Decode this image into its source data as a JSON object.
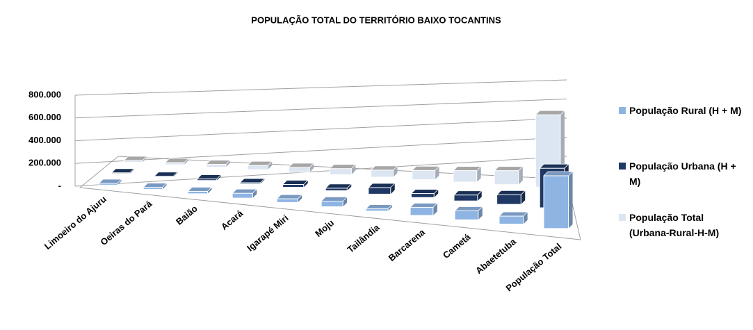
{
  "chart_data": {
    "type": "bar3d",
    "title": "POPULAÇÃO TOTAL DO TERRITÓRIO BAIXO TOCANTINS",
    "categories": [
      "Limoeiro do Ajuru",
      "Oeiras do Pará",
      "Baião",
      "Acará",
      "Igarapé Miri",
      "Moju",
      "Tailândia",
      "Barcarena",
      "Cametá",
      "Abaetetuba",
      "População Total"
    ],
    "series": [
      {
        "name": "População Rural (H + M)",
        "color": "#8eb4e3",
        "values": [
          16000,
          19000,
          21000,
          41000,
          30000,
          46000,
          18000,
          63000,
          68000,
          59000,
          381000
        ]
      },
      {
        "name": "População Urbana (H + M)",
        "color": "#1f3864",
        "values": [
          9000,
          9000,
          16000,
          12000,
          28000,
          24000,
          61000,
          36000,
          52000,
          82000,
          329000
        ]
      },
      {
        "name": "População Total (Urbana-Rural-H-M)",
        "color": "#dce6f2",
        "values": [
          25000,
          28000,
          37000,
          53000,
          58000,
          70000,
          79000,
          99000,
          120000,
          141000,
          710000
        ]
      }
    ],
    "ylim": [
      0,
      800000
    ],
    "yticks": [
      {
        "value": 0,
        "label": "-"
      },
      {
        "value": 200000,
        "label": "200.000"
      },
      {
        "value": 400000,
        "label": "400.000"
      },
      {
        "value": 600000,
        "label": "600.000"
      },
      {
        "value": 800000,
        "label": "800.000"
      }
    ],
    "grid": true
  }
}
